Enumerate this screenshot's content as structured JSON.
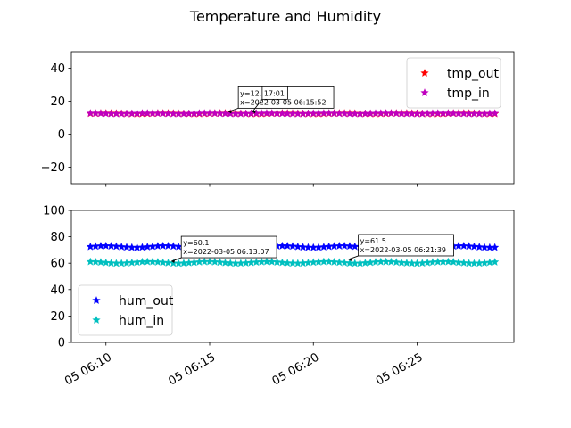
{
  "figure": {
    "title": "Temperature and Humidity"
  },
  "chart_data": [
    {
      "type": "scatter",
      "marker": "star",
      "x_type": "datetime",
      "x_start": "2022-03-05 06:09:15",
      "x_end": "2022-03-05 06:28:45",
      "x_step_seconds": 15,
      "xlim": [
        "2022-03-05 06:08:20",
        "2022-03-05 06:29:40"
      ],
      "ylim": [
        -30,
        50
      ],
      "yticks": [
        -20,
        0,
        20,
        40
      ],
      "series": [
        {
          "name": "tmp_out",
          "color": "#ff0000",
          "base": 12.5,
          "amp": 0.15
        },
        {
          "name": "tmp_in",
          "color": "#bf00bf",
          "base": 12.5,
          "amp": 0.15
        }
      ],
      "legend": "top-right",
      "annotations": [
        {
          "text_y": "y=12.5",
          "text_x": "x=2022-03-05 06:15:52",
          "x": "2022-03-05 06:15:52",
          "y": 12.5
        },
        {
          "text_y": "",
          "text_x": "17:01",
          "x": "2022-03-05 06:17:01",
          "y": 12.5
        }
      ],
      "xtick_labels_shown": false
    },
    {
      "type": "scatter",
      "marker": "star",
      "x_type": "datetime",
      "x_start": "2022-03-05 06:09:15",
      "x_end": "2022-03-05 06:28:45",
      "x_step_seconds": 15,
      "xlim": [
        "2022-03-05 06:08:20",
        "2022-03-05 06:29:40"
      ],
      "ylim": [
        0,
        100
      ],
      "yticks": [
        0,
        20,
        40,
        60,
        80,
        100
      ],
      "series": [
        {
          "name": "hum_out",
          "color": "#0000ff",
          "base": 72.5,
          "amp": 0.6
        },
        {
          "name": "hum_in",
          "color": "#00bfbf",
          "base": 60.5,
          "amp": 0.6
        }
      ],
      "legend": "bottom-left",
      "annotations": [
        {
          "text_y": "y=60.1",
          "text_x": "x=2022-03-05 06:13:07",
          "x": "2022-03-05 06:13:07",
          "y": 60.1
        },
        {
          "text_y": "y=61.5",
          "text_x": "x=2022-03-05 06:21:39",
          "x": "2022-03-05 06:21:39",
          "y": 61.5
        }
      ],
      "xticks": [
        "2022-03-05 06:10:00",
        "2022-03-05 06:15:00",
        "2022-03-05 06:20:00",
        "2022-03-05 06:25:00"
      ],
      "xtick_labels": [
        "05 06:10",
        "05 06:15",
        "05 06:20",
        "05 06:25"
      ],
      "xtick_labels_shown": true
    }
  ]
}
